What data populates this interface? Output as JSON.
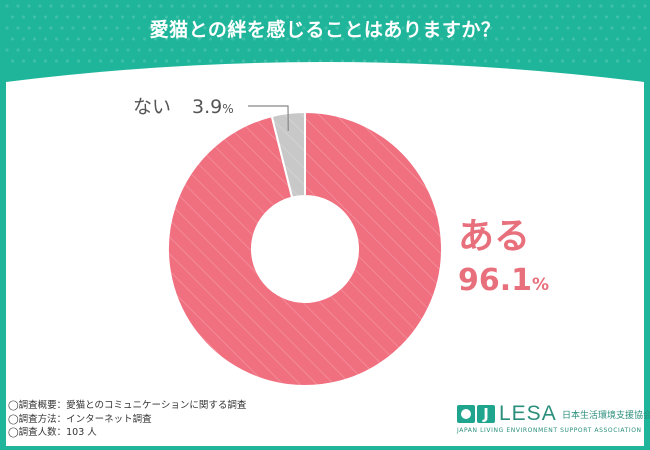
{
  "title": "愛猫との絆を感じることはありますか？",
  "colors": {
    "background": "#1fb59a",
    "panel": "#ffffff",
    "ari": "#f07080",
    "nai": "#c8c8c8",
    "text_label": "#e8707c",
    "text_small": "#555555"
  },
  "chart_data": {
    "type": "pie",
    "donut": true,
    "slices": [
      {
        "label": "ある",
        "value": 96.1,
        "display": "96.1",
        "unit": "%"
      },
      {
        "label": "ない",
        "value": 3.9,
        "display": "3.9",
        "unit": "%"
      }
    ]
  },
  "notes": [
    "◯調査概要：愛猫とのコミュニケーションに関する調査",
    "◯調査方法：インターネット調査",
    "◯調査人数：103 人"
  ],
  "logo": {
    "j": "J",
    "name": "LESA",
    "org_jp": "日本生活環境支援協会",
    "org_en": "JAPAN LIVING ENVIRONMENT SUPPORT ASSOCIATION"
  }
}
